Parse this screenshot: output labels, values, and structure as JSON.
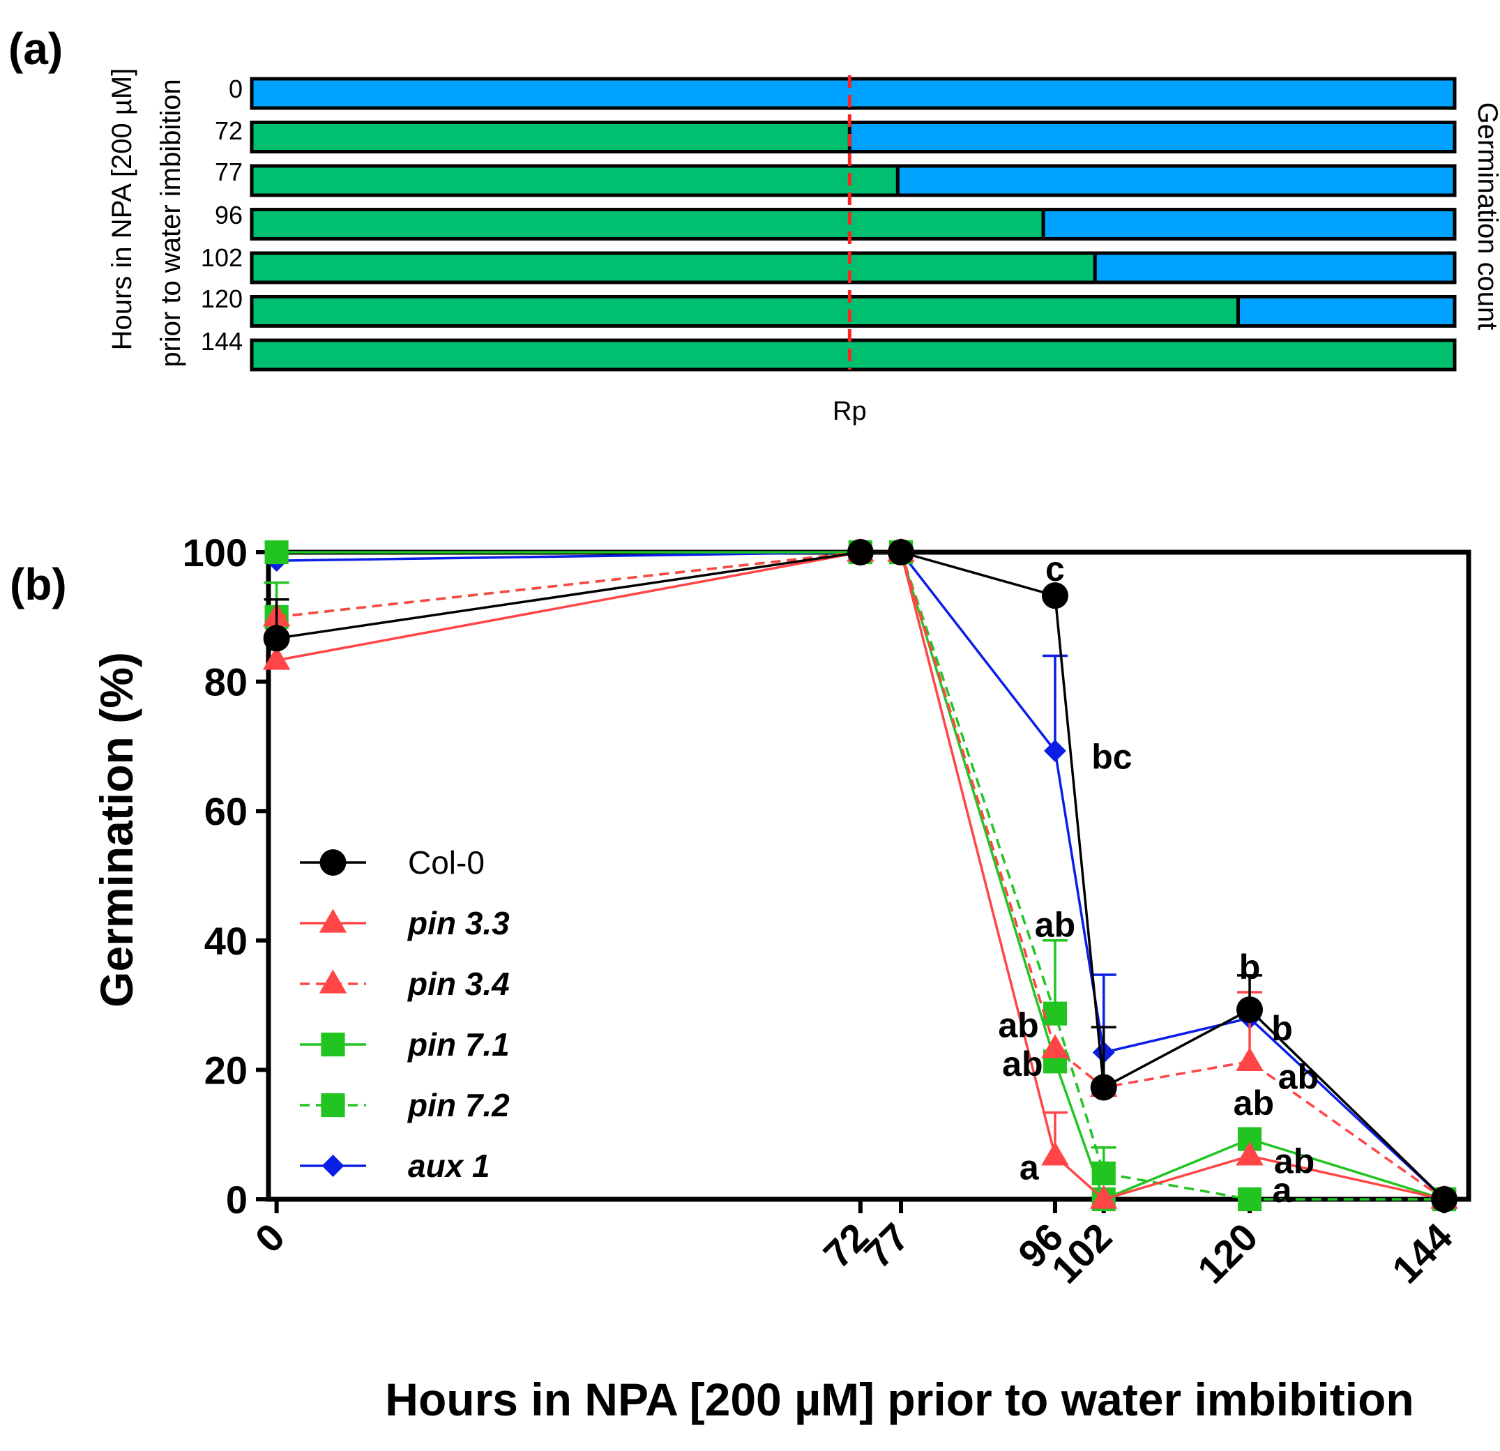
{
  "colors": {
    "blue_bar": "#00a2ff",
    "green_bar": "#00c070",
    "red_dashed": "#ff2020",
    "col0": "#000000",
    "pin3": "#ff4545",
    "pin7": "#22c422",
    "aux1": "#0a1ee6"
  },
  "panel_a": {
    "label": "(a)",
    "y_title_line1": "Hours in NPA [200 µM]",
    "y_title_line2": "prior to water imbibition",
    "right_title": "Germination count",
    "rp_label": "Rp",
    "tick_labels": [
      "0",
      "72",
      "77",
      "96",
      "102",
      "120",
      "144"
    ],
    "bars": [
      {
        "green_fraction": 0.0
      },
      {
        "green_fraction": 0.497
      },
      {
        "green_fraction": 0.537
      },
      {
        "green_fraction": 0.658
      },
      {
        "green_fraction": 0.701
      },
      {
        "green_fraction": 0.82
      },
      {
        "green_fraction": 1.0
      }
    ],
    "rp_fraction": 0.497
  },
  "panel_b": {
    "label": "(b)"
  },
  "chart_data": {
    "type": "line",
    "title": "",
    "xlabel": "Hours in NPA [200 µM] prior to water imbibition",
    "ylabel": "Germination (%)",
    "x": [
      0,
      72,
      77,
      96,
      102,
      120,
      144
    ],
    "x_tick_labels": [
      "0",
      "72",
      "77",
      "96",
      "102",
      "120",
      "144"
    ],
    "xlim": [
      -1,
      147
    ],
    "ylim": [
      0,
      100
    ],
    "y_ticks": [
      0,
      20,
      40,
      60,
      80,
      100
    ],
    "y_tick_labels": [
      "0",
      "20",
      "40",
      "60",
      "80",
      "100"
    ],
    "legend_position": "center-left",
    "series": [
      {
        "name": "Col-0",
        "italic": false,
        "color": "#000000",
        "dash": false,
        "marker": "circle",
        "values": [
          86.7,
          100,
          100,
          93.3,
          17.3,
          29.3,
          0
        ],
        "err": [
          6,
          0,
          0,
          0,
          9.3,
          5.3,
          0
        ]
      },
      {
        "name": "pin 3.3",
        "italic": true,
        "color": "#ff4545",
        "dash": false,
        "marker": "triangle",
        "values": [
          83.3,
          100,
          100,
          6.7,
          0,
          6.7,
          0
        ],
        "err": [
          0,
          0,
          0,
          6.7,
          0,
          0,
          0
        ]
      },
      {
        "name": "pin 3.4",
        "italic": true,
        "color": "#ff4545",
        "dash": true,
        "marker": "triangle",
        "values": [
          90,
          100,
          100,
          23.3,
          17.3,
          21.3,
          0
        ],
        "err": [
          0,
          0,
          0,
          0,
          0,
          10.7,
          0
        ]
      },
      {
        "name": "pin 7.1",
        "italic": true,
        "color": "#22c422",
        "dash": false,
        "marker": "square",
        "values": [
          100,
          100,
          100,
          21.3,
          0,
          9.3,
          0
        ],
        "err": [
          0,
          0,
          0,
          0,
          0,
          0,
          0
        ]
      },
      {
        "name": "pin 7.2",
        "italic": true,
        "color": "#22c422",
        "dash": true,
        "marker": "square",
        "values": [
          90,
          100,
          100,
          28.7,
          4,
          0,
          0
        ],
        "err": [
          5.3,
          0,
          0,
          11.3,
          4,
          0,
          0
        ]
      },
      {
        "name": "aux 1",
        "italic": true,
        "color": "#0a1ee6",
        "dash": false,
        "marker": "diamond",
        "values": [
          98.7,
          100,
          100,
          69.3,
          22.7,
          28,
          0
        ],
        "err": [
          0,
          0,
          0,
          14.7,
          12,
          0,
          0
        ]
      }
    ],
    "annotations": [
      {
        "text": "c",
        "x": 96,
        "y": 97.5,
        "anchor": "middle"
      },
      {
        "text": "bc",
        "x": 100.5,
        "y": 68.5,
        "anchor": "start"
      },
      {
        "text": "ab",
        "x": 96,
        "y": 42.5,
        "anchor": "middle"
      },
      {
        "text": "ab",
        "x": 94,
        "y": 27,
        "anchor": "end"
      },
      {
        "text": "ab",
        "x": 94.5,
        "y": 21,
        "anchor": "end"
      },
      {
        "text": "a",
        "x": 94,
        "y": 5,
        "anchor": "end"
      },
      {
        "text": "b",
        "x": 120,
        "y": 36,
        "anchor": "middle"
      },
      {
        "text": "b",
        "x": 124,
        "y": 26.5,
        "anchor": "middle"
      },
      {
        "text": "ab",
        "x": 123.5,
        "y": 19,
        "anchor": "start"
      },
      {
        "text": "ab",
        "x": 120.5,
        "y": 15,
        "anchor": "middle"
      },
      {
        "text": "ab",
        "x": 123,
        "y": 6,
        "anchor": "start"
      },
      {
        "text": "a",
        "x": 124,
        "y": 1.5,
        "anchor": "middle"
      }
    ]
  }
}
